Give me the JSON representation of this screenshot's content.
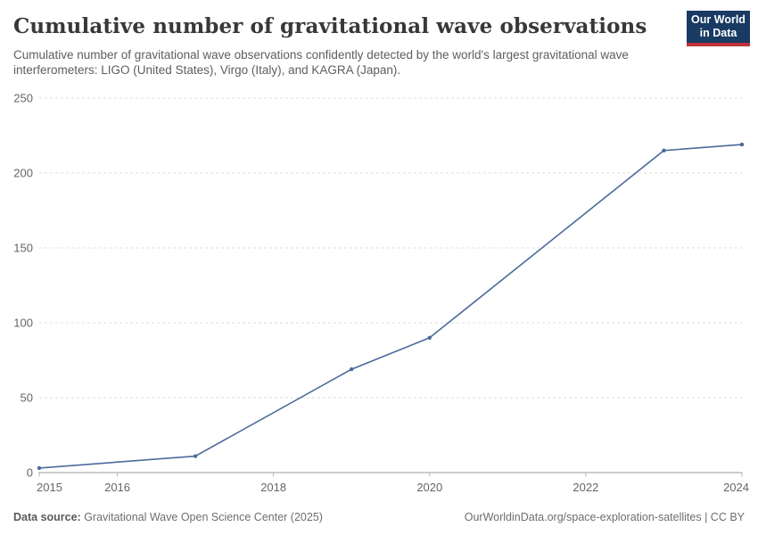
{
  "header": {
    "title": "Cumulative number of gravitational wave observations",
    "subtitle": "Cumulative number of gravitational wave observations confidently detected by the world's largest gravitational wave interferometers: LIGO (United States), Virgo (Italy), and KAGRA (Japan).",
    "logo": {
      "line1": "Our World",
      "line2": "in Data"
    }
  },
  "footer": {
    "source_label": "Data source:",
    "source_text": " Gravitational Wave Open Science Center (2025)",
    "right_text": "OurWorldinData.org/space-exploration-satellites | CC BY"
  },
  "colors": {
    "line": "#4c6a9c",
    "gridline": "#dedede",
    "axis": "#9a9a9a",
    "tick_mark": "#b5b5b5",
    "tick_label": "#666666",
    "logo_navy": "#193a63",
    "logo_red": "#c0313c",
    "title_text": "#383838",
    "subtitle_text": "#5e5e5e"
  },
  "chart_data": {
    "type": "line",
    "title": "Cumulative number of gravitational wave observations",
    "series_name": "Cumulative gravitational wave observations",
    "x": [
      2015,
      2017,
      2019,
      2020,
      2023,
      2024
    ],
    "values": [
      3,
      11,
      69,
      90,
      215,
      219
    ],
    "xlabel": "",
    "ylabel": "",
    "xlim": [
      2015,
      2024
    ],
    "ylim": [
      0,
      250
    ],
    "x_ticks": [
      2015,
      2016,
      2018,
      2020,
      2022,
      2024
    ],
    "y_ticks": [
      0,
      50,
      100,
      150,
      200,
      250
    ],
    "grid": "horizontal-dashed",
    "legend": "none",
    "line_color": "#4c6a9c",
    "marker": "dot"
  }
}
